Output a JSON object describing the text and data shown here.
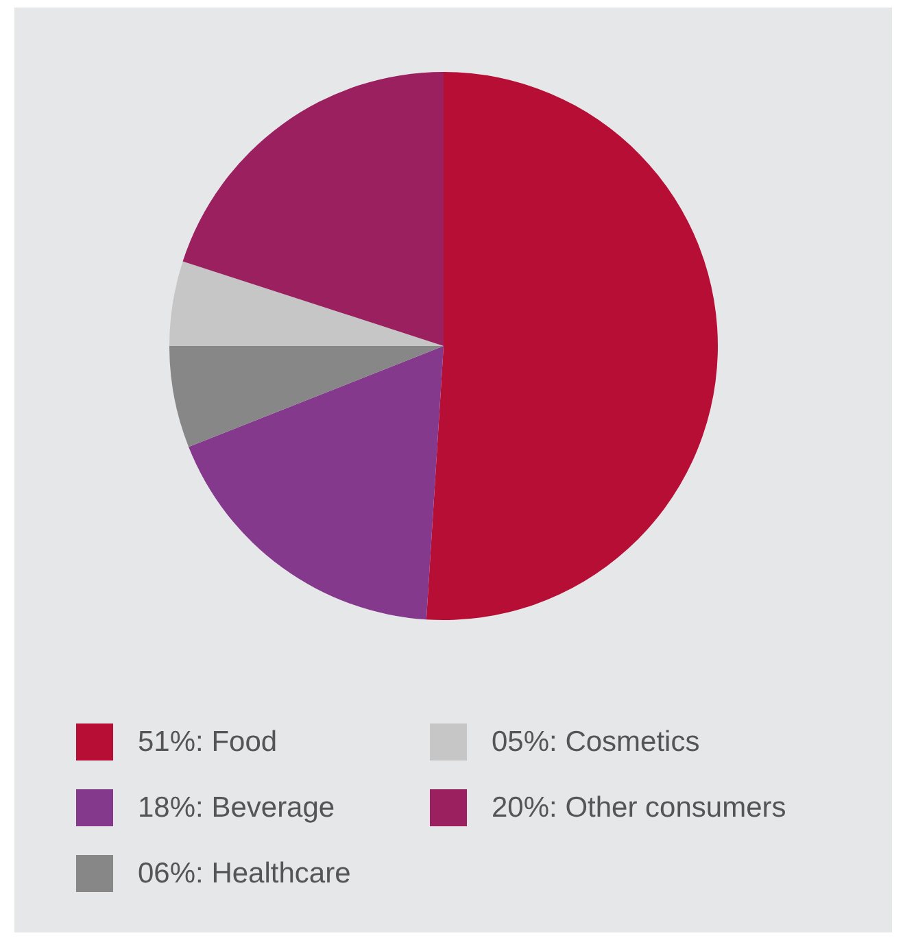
{
  "chart_data": {
    "type": "pie",
    "categories": [
      "51%: Food",
      "18%: Beverage",
      "06%: Healthcare",
      "05%: Cosmetics",
      "20%: Other consumers"
    ],
    "values": [
      51,
      18,
      6,
      5,
      20
    ],
    "colors": [
      "#b70e36",
      "#84398c",
      "#878787",
      "#c6c6c6",
      "#9a2060"
    ],
    "legend": "bottom"
  }
}
